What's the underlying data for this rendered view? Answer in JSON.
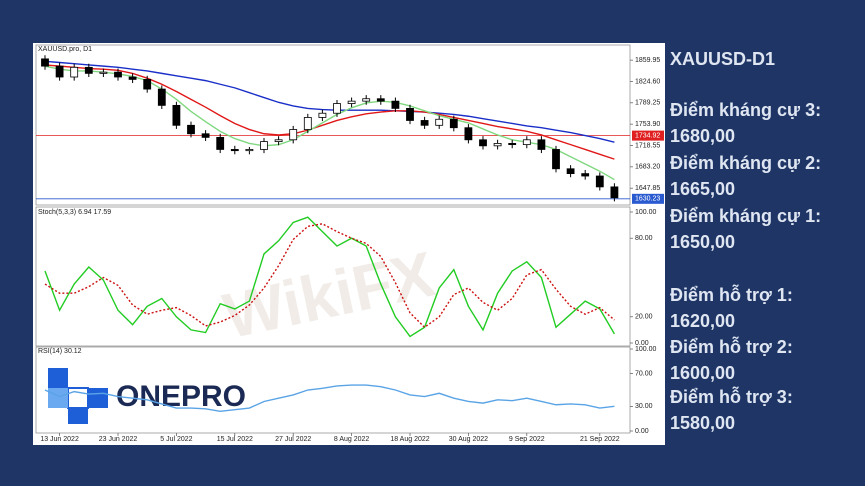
{
  "chart_data": [
    {
      "type": "candlestick",
      "title": "XAUUSD.pro, D1",
      "open": [
        1862,
        1850,
        1832,
        1848,
        1838,
        1840,
        1832,
        1828,
        1812,
        1785,
        1752,
        1738,
        1732,
        1712,
        1710,
        1712,
        1725,
        1728,
        1745,
        1765,
        1772,
        1788,
        1792,
        1796,
        1792,
        1780,
        1760,
        1752,
        1762,
        1748,
        1728,
        1718,
        1722,
        1720,
        1728,
        1712,
        1680,
        1672,
        1668,
        1650
      ],
      "high": [
        1868,
        1856,
        1854,
        1854,
        1846,
        1846,
        1838,
        1834,
        1818,
        1791,
        1758,
        1744,
        1738,
        1718,
        1716,
        1731,
        1734,
        1751,
        1771,
        1778,
        1794,
        1798,
        1802,
        1802,
        1798,
        1786,
        1766,
        1768,
        1768,
        1754,
        1734,
        1728,
        1728,
        1734,
        1734,
        1718,
        1686,
        1678,
        1674,
        1656
      ],
      "low": [
        1844,
        1826,
        1826,
        1832,
        1832,
        1826,
        1822,
        1806,
        1779,
        1746,
        1732,
        1726,
        1706,
        1704,
        1704,
        1706,
        1719,
        1722,
        1739,
        1759,
        1766,
        1782,
        1786,
        1786,
        1774,
        1754,
        1746,
        1746,
        1742,
        1722,
        1712,
        1712,
        1714,
        1714,
        1706,
        1674,
        1666,
        1662,
        1644,
        1626
      ],
      "close": [
        1850,
        1832,
        1848,
        1838,
        1840,
        1832,
        1828,
        1812,
        1785,
        1752,
        1738,
        1732,
        1712,
        1710,
        1712,
        1725,
        1728,
        1745,
        1765,
        1772,
        1788,
        1792,
        1796,
        1792,
        1780,
        1760,
        1752,
        1762,
        1748,
        1728,
        1718,
        1722,
        1720,
        1728,
        1712,
        1680,
        1672,
        1668,
        1650,
        1632
      ],
      "series": [
        {
          "color": "#1a2fc8",
          "values": [
            1858,
            1856,
            1854,
            1852,
            1850,
            1848,
            1845,
            1842,
            1838,
            1834,
            1830,
            1826,
            1820,
            1814,
            1806,
            1798,
            1790,
            1784,
            1780,
            1778,
            1777,
            1777,
            1777,
            1777,
            1776,
            1775,
            1774,
            1772,
            1770,
            1767,
            1763,
            1759,
            1755,
            1751,
            1748,
            1744,
            1740,
            1735,
            1730,
            1724
          ]
        },
        {
          "color": "#e01818",
          "values": [
            1852,
            1850,
            1848,
            1846,
            1845,
            1843,
            1838,
            1830,
            1820,
            1808,
            1795,
            1782,
            1768,
            1755,
            1745,
            1738,
            1736,
            1738,
            1744,
            1752,
            1760,
            1766,
            1771,
            1774,
            1776,
            1776,
            1774,
            1770,
            1765,
            1760,
            1755,
            1750,
            1746,
            1742,
            1736,
            1728,
            1720,
            1712,
            1704,
            1696
          ]
        },
        {
          "color": "#80d880",
          "values": [
            1850,
            1845,
            1842,
            1842,
            1840,
            1837,
            1833,
            1826,
            1812,
            1795,
            1775,
            1758,
            1742,
            1730,
            1722,
            1718,
            1720,
            1728,
            1742,
            1756,
            1770,
            1781,
            1789,
            1792,
            1790,
            1784,
            1776,
            1768,
            1762,
            1756,
            1746,
            1736,
            1728,
            1724,
            1720,
            1712,
            1700,
            1688,
            1676,
            1662
          ]
        }
      ],
      "hlines": [
        {
          "value": 1734.92,
          "color": "#e02020"
        },
        {
          "value": 1630.23,
          "color": "#2a5ad0"
        }
      ],
      "ylim": [
        1620,
        1885
      ],
      "yticks": [
        1859.95,
        {
          "value": 1824.6,
          "label": "1824.60"
        },
        1789.25,
        {
          "value": 1753.9,
          "label": "1753.90"
        },
        1718.55,
        {
          "value": 1683.2,
          "label": "1683.20"
        },
        1647.85
      ]
    },
    {
      "type": "line",
      "title": "Stoch(5,3,3) 6.94 17.59",
      "series": [
        {
          "color": "#22cc22",
          "values": [
            55,
            25,
            45,
            58,
            48,
            25,
            14,
            28,
            34,
            20,
            10,
            8,
            30,
            26,
            32,
            68,
            78,
            92,
            96,
            85,
            74,
            80,
            74,
            45,
            20,
            5,
            12,
            42,
            56,
            28,
            10,
            38,
            55,
            62,
            50,
            12,
            22,
            32,
            26,
            6.94
          ]
        },
        {
          "color": "#cc1010",
          "style": "dotted",
          "values": [
            45,
            38,
            38,
            43,
            50,
            44,
            29,
            22,
            25,
            27,
            21,
            13,
            16,
            21,
            29,
            42,
            59,
            79,
            89,
            91,
            85,
            80,
            76,
            66,
            46,
            23,
            12,
            20,
            37,
            42,
            31,
            25,
            34,
            52,
            56,
            41,
            28,
            22,
            27,
            17.59
          ]
        }
      ],
      "ylim": [
        0,
        100
      ],
      "yticks": [
        {
          "value": 100,
          "label": "100.00"
        },
        {
          "value": 80,
          "label": "80.00"
        },
        {
          "value": 20,
          "label": "20.00"
        },
        {
          "value": 0,
          "label": "0.00"
        }
      ]
    },
    {
      "type": "line",
      "title": "RSI(14) 30.12",
      "categories": [
        null,
        "13 Jun 2022",
        null,
        null,
        null,
        "23 Jun 2022",
        null,
        null,
        null,
        "5 Jul 2022",
        null,
        null,
        null,
        "15 Jul 2022",
        null,
        null,
        null,
        "27 Jul 2022",
        null,
        null,
        null,
        "8 Aug 2022",
        null,
        null,
        null,
        "18 Aug 2022",
        null,
        null,
        null,
        "30 Aug 2022",
        null,
        null,
        null,
        "9 Sep 2022",
        null,
        null,
        null,
        null,
        "21 Sep 2022",
        null
      ],
      "series": [
        {
          "color": "#5aa4e6",
          "values": [
            50,
            42,
            48,
            45,
            46,
            42,
            40,
            38,
            33,
            28,
            28,
            27,
            24,
            26,
            28,
            36,
            40,
            44,
            50,
            52,
            55,
            56,
            56,
            54,
            50,
            44,
            42,
            46,
            40,
            36,
            34,
            38,
            37,
            40,
            36,
            32,
            33,
            32,
            28,
            30.12
          ]
        }
      ],
      "ylim": [
        0,
        100
      ],
      "yticks": [
        {
          "value": 100,
          "label": "100.00"
        },
        {
          "value": 70,
          "label": "70.00"
        },
        {
          "value": 30,
          "label": "30.00"
        },
        {
          "value": 0,
          "label": "0.00"
        }
      ]
    }
  ],
  "watermark": "WikiFX",
  "logo": "ONEPRO",
  "sidebar": {
    "title": "XAUUSD-D1",
    "levels": [
      {
        "label": "Điểm kháng cự 3:",
        "value": "1680,00"
      },
      {
        "label": "Điểm kháng cự 2:",
        "value": "1665,00"
      },
      {
        "label": "Điểm kháng cự 1:",
        "value": "1650,00"
      },
      {
        "label": "Điểm hỗ trợ 1:",
        "value": "1620,00"
      },
      {
        "label": "Điểm hỗ trợ 2:",
        "value": "1600,00"
      },
      {
        "label": "Điểm hỗ trợ 3:",
        "value": "1580,00"
      }
    ]
  }
}
